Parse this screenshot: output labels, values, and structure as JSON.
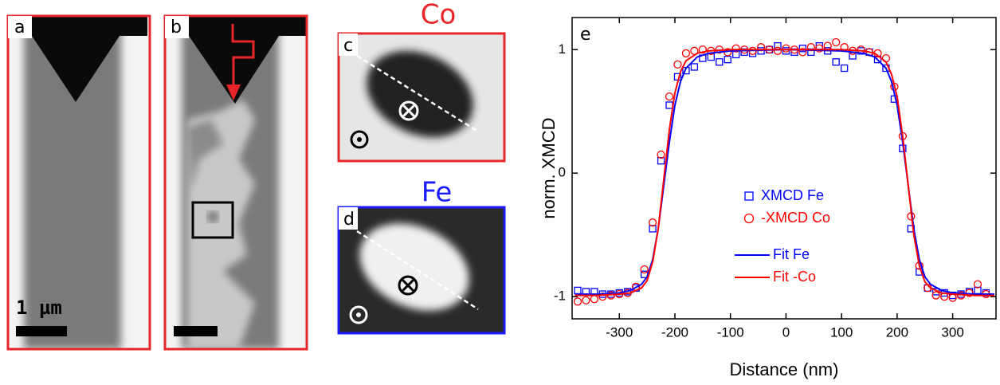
{
  "panels": {
    "a": "a",
    "b": "b",
    "c": "c",
    "d": "d",
    "scale_bar": "1 µm",
    "co_title": "Co",
    "fe_title": "Fe"
  },
  "chart_data": {
    "type": "scatter",
    "panel_label": "e",
    "x_label": "Distance (nm)",
    "y_label": "norm. XMCD",
    "xlim": [
      -385,
      378
    ],
    "ylim": [
      -1.18,
      1.26
    ],
    "xticks": [
      -300,
      -200,
      -100,
      0,
      100,
      200,
      300
    ],
    "yticks": [
      -1,
      0,
      1
    ],
    "series": [
      {
        "name": "XMCD Fe",
        "color": "#0000ff",
        "marker": "square",
        "x": [
          -375,
          -360,
          -345,
          -330,
          -315,
          -300,
          -285,
          -270,
          -255,
          -240,
          -225,
          -210,
          -195,
          -180,
          -165,
          -150,
          -135,
          -120,
          -105,
          -90,
          -75,
          -60,
          -45,
          -30,
          -15,
          0,
          15,
          30,
          45,
          60,
          75,
          90,
          105,
          120,
          135,
          150,
          165,
          180,
          195,
          210,
          225,
          240,
          255,
          270,
          285,
          300,
          315,
          330,
          345,
          360
        ],
        "values": [
          -0.95,
          -0.96,
          -0.96,
          -0.98,
          -0.98,
          -0.97,
          -0.96,
          -0.93,
          -0.82,
          -0.45,
          0.1,
          0.55,
          0.78,
          0.83,
          0.86,
          0.93,
          0.94,
          0.9,
          0.92,
          0.96,
          0.98,
          0.97,
          0.99,
          1.0,
          1.03,
          0.99,
          0.98,
          1.01,
          0.98,
          1.03,
          0.99,
          0.9,
          0.85,
          0.95,
          0.99,
          0.98,
          0.92,
          0.85,
          0.6,
          0.2,
          -0.45,
          -0.8,
          -0.93,
          -0.96,
          -0.97,
          -0.99,
          -0.98,
          -0.96,
          -0.95,
          -0.97
        ]
      },
      {
        "name": "-XMCD Co",
        "color": "#ff0000",
        "marker": "circle",
        "x": [
          -375,
          -360,
          -345,
          -330,
          -315,
          -300,
          -285,
          -270,
          -255,
          -240,
          -225,
          -210,
          -195,
          -180,
          -165,
          -150,
          -135,
          -120,
          -105,
          -90,
          -75,
          -60,
          -45,
          -30,
          -15,
          0,
          15,
          30,
          45,
          60,
          75,
          90,
          105,
          120,
          135,
          150,
          165,
          180,
          195,
          210,
          225,
          240,
          255,
          270,
          285,
          300,
          315,
          330,
          345,
          360
        ],
        "values": [
          -1.04,
          -1.03,
          -1.02,
          -1.0,
          -0.99,
          -0.98,
          -0.97,
          -0.92,
          -0.78,
          -0.4,
          0.15,
          0.62,
          0.88,
          0.97,
          0.99,
          1.0,
          0.99,
          1.0,
          0.98,
          1.01,
          1.0,
          0.99,
          1.02,
          1.0,
          0.99,
          1.01,
          1.0,
          0.98,
          1.02,
          1.01,
          1.03,
          1.06,
          1.02,
          0.99,
          1.0,
          0.98,
          0.97,
          0.93,
          0.7,
          0.3,
          -0.35,
          -0.75,
          -0.93,
          -0.99,
          -1.0,
          -1.01,
          -0.99,
          -0.97,
          -0.9,
          -0.98
        ]
      },
      {
        "name": "Fit Fe",
        "color": "#0000ff",
        "marker": "line",
        "x": [
          -380,
          -340,
          -300,
          -280,
          -260,
          -250,
          -240,
          -230,
          -220,
          -210,
          -200,
          -190,
          -180,
          -160,
          -140,
          -100,
          0,
          100,
          140,
          160,
          180,
          190,
          200,
          210,
          220,
          230,
          240,
          250,
          260,
          280,
          300,
          340,
          375
        ],
        "values": [
          -0.98,
          -0.98,
          -0.97,
          -0.95,
          -0.9,
          -0.84,
          -0.7,
          -0.45,
          -0.1,
          0.25,
          0.55,
          0.74,
          0.85,
          0.94,
          0.97,
          0.99,
          1.0,
          0.99,
          0.97,
          0.94,
          0.85,
          0.74,
          0.55,
          0.25,
          -0.1,
          -0.45,
          -0.7,
          -0.84,
          -0.9,
          -0.95,
          -0.97,
          -0.98,
          -0.98
        ]
      },
      {
        "name": "Fit -Co",
        "color": "#ff0000",
        "marker": "line",
        "x": [
          -380,
          -340,
          -300,
          -280,
          -260,
          -250,
          -240,
          -230,
          -220,
          -210,
          -200,
          -190,
          -180,
          -160,
          -140,
          -100,
          0,
          100,
          140,
          160,
          180,
          190,
          200,
          210,
          220,
          230,
          240,
          250,
          260,
          280,
          300,
          340,
          375
        ],
        "values": [
          -0.99,
          -0.99,
          -0.98,
          -0.97,
          -0.93,
          -0.87,
          -0.72,
          -0.45,
          -0.05,
          0.35,
          0.65,
          0.82,
          0.91,
          0.97,
          0.99,
          1.0,
          1.0,
          1.0,
          0.99,
          0.97,
          0.9,
          0.8,
          0.62,
          0.3,
          -0.1,
          -0.5,
          -0.75,
          -0.88,
          -0.93,
          -0.97,
          -0.98,
          -0.99,
          -0.99
        ]
      }
    ]
  }
}
